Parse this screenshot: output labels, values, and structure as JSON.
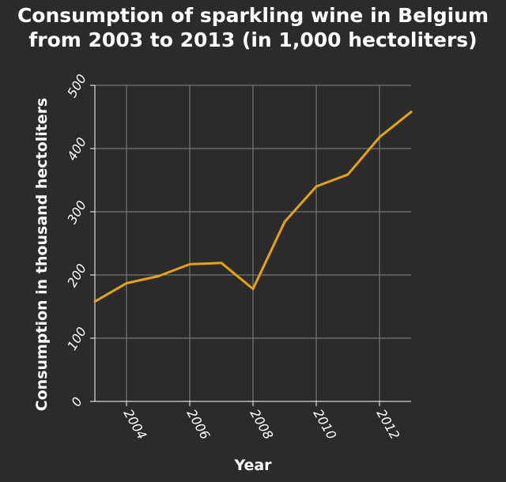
{
  "chart_data": {
    "type": "line",
    "title_line1": "Consumption of sparkling wine in Belgium",
    "title_line2": "from 2003 to 2013 (in 1,000 hectoliters)",
    "xlabel": "Year",
    "ylabel": "Consumption in thousand hectoliters",
    "xlim": [
      2003,
      2013
    ],
    "ylim": [
      0,
      500
    ],
    "x_ticks": [
      "2004",
      "2006",
      "2008",
      "2010",
      "2012"
    ],
    "y_ticks": [
      "0",
      "100",
      "200",
      "300",
      "400",
      "500"
    ],
    "grid": true,
    "series": [
      {
        "color": "#e5a50a",
        "x": [
          2003,
          2004,
          2005,
          2006,
          2007,
          2008,
          2009,
          2010,
          2011,
          2012,
          2013
        ],
        "values": [
          158,
          187,
          198,
          217,
          219,
          178,
          284,
          340,
          359,
          418,
          458
        ]
      }
    ],
    "colors": {
      "background": "#2b2b2b",
      "plot_area": "#2b2b2b",
      "grid": "#8a8a8a",
      "axis": "#ffffff",
      "line": "#e5a50a"
    }
  }
}
